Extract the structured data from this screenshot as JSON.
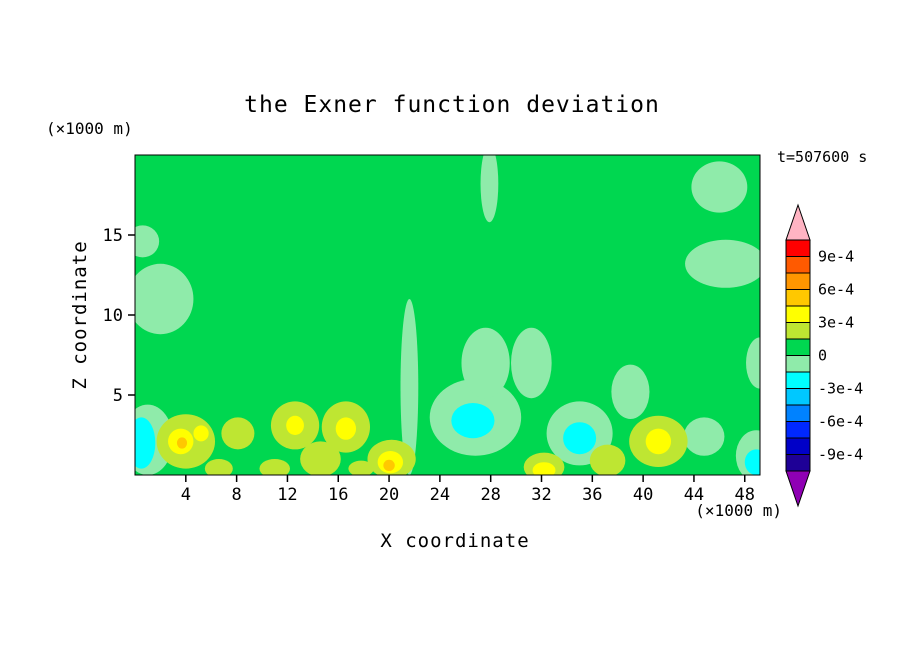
{
  "chart_data": {
    "type": "filled-contour",
    "title": "the Exner function deviation",
    "xlabel": "X coordinate",
    "ylabel": "Z coordinate",
    "x_unit": "(×1000 m)",
    "y_unit": "(×1000 m)",
    "time_annotation": "t=507600 s",
    "xlim": [
      0,
      49.2
    ],
    "ylim": [
      0,
      20
    ],
    "x_ticks": [
      4,
      8,
      12,
      16,
      20,
      24,
      28,
      32,
      36,
      40,
      44,
      48
    ],
    "y_ticks": [
      5,
      10,
      15
    ],
    "grid": false,
    "contour_interval": 0.00015,
    "colorbar": {
      "orientation": "vertical-right",
      "labels": [
        "9e-4",
        "6e-4",
        "3e-4",
        "0",
        "-3e-4",
        "-6e-4",
        "-9e-4"
      ],
      "label_band_boundary_from_top": [
        1,
        3,
        5,
        7,
        9,
        11,
        13
      ],
      "over_arrow_color": "#ffb4c3",
      "under_arrow_color": "#8f00b4",
      "band_colors_top_to_bottom": [
        "#ff0000",
        "#ff5a00",
        "#ff9600",
        "#ffc800",
        "#ffff00",
        "#bee632",
        "#00d750",
        "#8febaa",
        "#00ffff",
        "#00c8ff",
        "#0082ff",
        "#0028ff",
        "#0000c8",
        "#1e0096"
      ]
    },
    "background_band_color": "#00d750",
    "background_band_range": "0 to 1.5e-4",
    "band_legend": {
      "+3": "4.5e-4 to 6e-4 (orange)",
      "+2": "3e-4 to 4.5e-4 (yellow)",
      "+1": "1.5e-4 to 3e-4 (yellow-green)",
      "-1": "-1.5e-4 to 0 (pale green)",
      "-2": "-3e-4 to -1.5e-4 (cyan)"
    },
    "field_summary": "Field is mostly in the 0 to 1.5e-4 band (green); weak negative pockets down to about -3e-4 (cyan) and positive pockets up to about 5e-4 (yellow/orange) occur mainly below z = 4 km.",
    "anomaly_blobs": [
      {
        "x": 2.0,
        "z": 11.0,
        "rx": 2.6,
        "rz": 2.2,
        "band": "-1"
      },
      {
        "x": 0.6,
        "z": 14.6,
        "rx": 1.3,
        "rz": 1.0,
        "band": "-1"
      },
      {
        "x": 46.5,
        "z": 13.2,
        "rx": 3.2,
        "rz": 1.5,
        "band": "-1"
      },
      {
        "x": 46.0,
        "z": 18.0,
        "rx": 2.2,
        "rz": 1.6,
        "band": "-1"
      },
      {
        "x": 49.2,
        "z": 7.0,
        "rx": 1.1,
        "rz": 1.6,
        "band": "-1"
      },
      {
        "x": 21.6,
        "z": 5.5,
        "rx": 0.7,
        "rz": 5.5,
        "band": "-1"
      },
      {
        "x": 27.9,
        "z": 18.2,
        "rx": 0.7,
        "rz": 2.4,
        "band": "-1"
      },
      {
        "x": 26.8,
        "z": 3.6,
        "rx": 3.6,
        "rz": 2.4,
        "band": "-1"
      },
      {
        "x": 27.6,
        "z": 7.0,
        "rx": 1.9,
        "rz": 2.2,
        "band": "-1"
      },
      {
        "x": 35.0,
        "z": 2.6,
        "rx": 2.6,
        "rz": 2.0,
        "band": "-1"
      },
      {
        "x": 1.0,
        "z": 2.2,
        "rx": 2.0,
        "rz": 2.2,
        "band": "-1"
      },
      {
        "x": 48.9,
        "z": 1.2,
        "rx": 1.6,
        "rz": 1.6,
        "band": "-1"
      },
      {
        "x": 31.2,
        "z": 7.0,
        "rx": 1.6,
        "rz": 2.2,
        "band": "-1"
      },
      {
        "x": 44.8,
        "z": 2.4,
        "rx": 1.6,
        "rz": 1.2,
        "band": "-1"
      },
      {
        "x": 39.0,
        "z": 5.2,
        "rx": 1.5,
        "rz": 1.7,
        "band": "-1"
      },
      {
        "x": 0.5,
        "z": 2.0,
        "rx": 1.1,
        "rz": 1.6,
        "band": "-2"
      },
      {
        "x": 26.6,
        "z": 3.4,
        "rx": 1.7,
        "rz": 1.1,
        "band": "-2"
      },
      {
        "x": 35.0,
        "z": 2.3,
        "rx": 1.3,
        "rz": 1.0,
        "band": "-2"
      },
      {
        "x": 48.9,
        "z": 0.8,
        "rx": 0.9,
        "rz": 0.8,
        "band": "-2"
      },
      {
        "x": 4.0,
        "z": 2.1,
        "rx": 2.3,
        "rz": 1.7,
        "band": "+1"
      },
      {
        "x": 8.1,
        "z": 2.6,
        "rx": 1.3,
        "rz": 1.0,
        "band": "+1"
      },
      {
        "x": 12.6,
        "z": 3.1,
        "rx": 1.9,
        "rz": 1.5,
        "band": "+1"
      },
      {
        "x": 16.6,
        "z": 3.0,
        "rx": 1.9,
        "rz": 1.6,
        "band": "+1"
      },
      {
        "x": 14.6,
        "z": 1.0,
        "rx": 1.6,
        "rz": 1.1,
        "band": "+1"
      },
      {
        "x": 20.2,
        "z": 1.0,
        "rx": 1.9,
        "rz": 1.2,
        "band": "+1"
      },
      {
        "x": 32.2,
        "z": 0.5,
        "rx": 1.6,
        "rz": 0.9,
        "band": "+1"
      },
      {
        "x": 37.2,
        "z": 0.9,
        "rx": 1.4,
        "rz": 1.0,
        "band": "+1"
      },
      {
        "x": 41.2,
        "z": 2.1,
        "rx": 2.3,
        "rz": 1.6,
        "band": "+1"
      },
      {
        "x": 6.6,
        "z": 0.4,
        "rx": 1.1,
        "rz": 0.6,
        "band": "+1"
      },
      {
        "x": 11.0,
        "z": 0.4,
        "rx": 1.2,
        "rz": 0.6,
        "band": "+1"
      },
      {
        "x": 17.8,
        "z": 0.4,
        "rx": 1.0,
        "rz": 0.5,
        "band": "+1"
      },
      {
        "x": 3.6,
        "z": 2.1,
        "rx": 1.0,
        "rz": 0.8,
        "band": "+2"
      },
      {
        "x": 5.2,
        "z": 2.6,
        "rx": 0.6,
        "rz": 0.5,
        "band": "+2"
      },
      {
        "x": 16.6,
        "z": 2.9,
        "rx": 0.8,
        "rz": 0.7,
        "band": "+2"
      },
      {
        "x": 20.1,
        "z": 0.8,
        "rx": 1.0,
        "rz": 0.7,
        "band": "+2"
      },
      {
        "x": 41.2,
        "z": 2.1,
        "rx": 1.0,
        "rz": 0.8,
        "band": "+2"
      },
      {
        "x": 32.2,
        "z": 0.3,
        "rx": 0.9,
        "rz": 0.5,
        "band": "+2"
      },
      {
        "x": 12.6,
        "z": 3.1,
        "rx": 0.7,
        "rz": 0.6,
        "band": "+2"
      },
      {
        "x": 3.7,
        "z": 2.0,
        "rx": 0.4,
        "rz": 0.35,
        "band": "+3"
      },
      {
        "x": 20.0,
        "z": 0.6,
        "rx": 0.45,
        "rz": 0.35,
        "band": "+3"
      }
    ]
  }
}
